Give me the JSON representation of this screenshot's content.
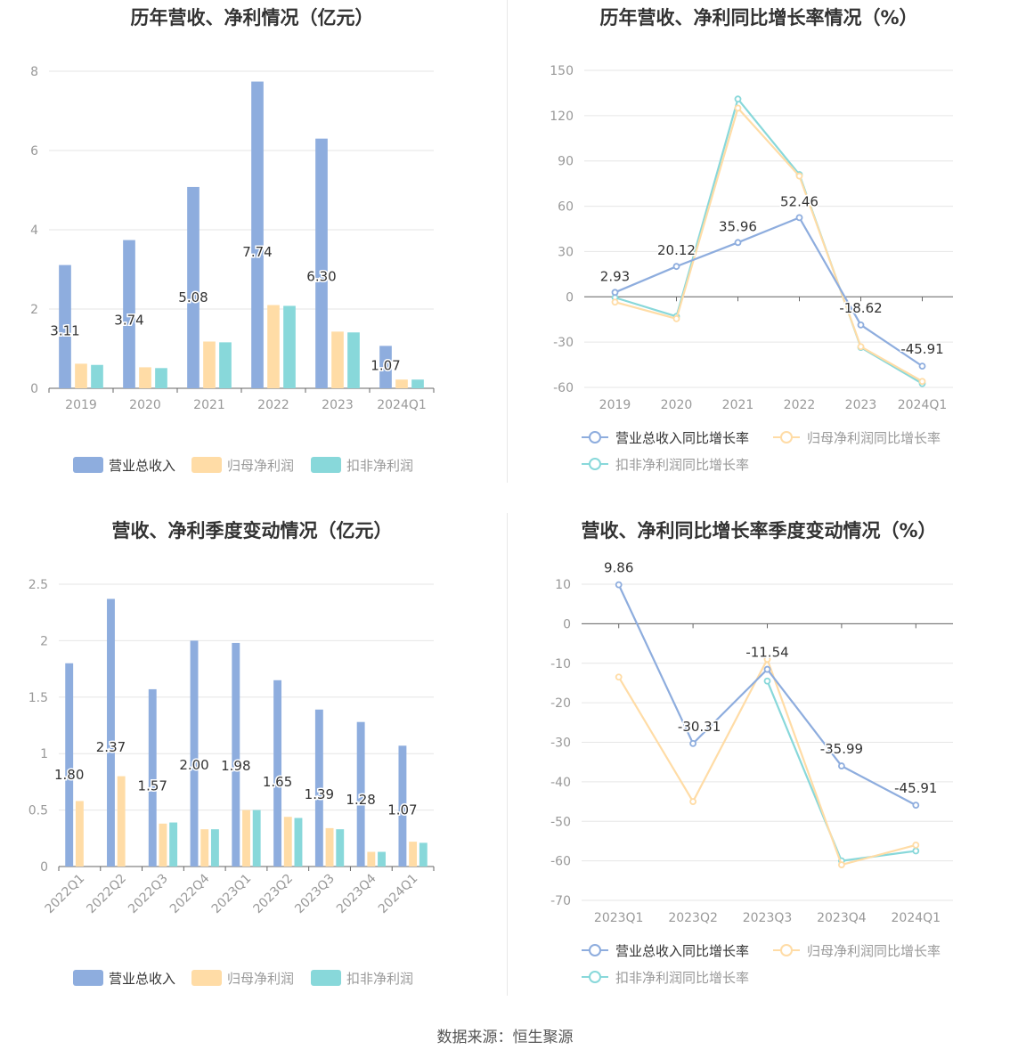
{
  "footer": {
    "source": "数据来源：恒生聚源"
  },
  "colors": {
    "revenue": "#8eadde",
    "net": "#ffdca6",
    "deducted": "#88d8da",
    "axis": "#666666",
    "grid": "#e6e6e6",
    "label": "#333333",
    "tick": "#999999"
  },
  "chart_data": [
    {
      "id": "annual-amount",
      "type": "bar",
      "title": "历年营收、净利情况（亿元）",
      "categories": [
        "2019",
        "2020",
        "2021",
        "2022",
        "2023",
        "2024Q1"
      ],
      "series": [
        {
          "name": "营业总收入",
          "values": [
            3.11,
            3.74,
            5.08,
            7.74,
            6.3,
            1.07
          ],
          "labels": [
            "3.11",
            "3.74",
            "5.08",
            "7.74",
            "6.30",
            "1.07"
          ]
        },
        {
          "name": "归母净利润",
          "values": [
            0.62,
            0.53,
            1.18,
            2.1,
            1.43,
            0.22
          ]
        },
        {
          "name": "扣非净利润",
          "values": [
            0.59,
            0.51,
            1.16,
            2.08,
            1.41,
            0.22
          ]
        }
      ],
      "ylim": [
        0,
        8
      ],
      "yticks": [
        "0",
        "2",
        "4",
        "6",
        "8"
      ],
      "grid": true,
      "legend": "bottom"
    },
    {
      "id": "annual-growth",
      "type": "line",
      "title": "历年营收、净利同比增长率情况（%）",
      "categories": [
        "2019",
        "2020",
        "2021",
        "2022",
        "2023",
        "2024Q1"
      ],
      "series": [
        {
          "name": "营业总收入同比增长率",
          "values": [
            2.93,
            20.12,
            35.96,
            52.46,
            -18.62,
            -45.91
          ],
          "labels": [
            "2.93",
            "20.12",
            "35.96",
            "52.46",
            "-18.62",
            "-45.91"
          ]
        },
        {
          "name": "归母净利润同比增长率",
          "values": [
            -3.5,
            -14.5,
            125.0,
            80.0,
            -33.0,
            -56.0
          ]
        },
        {
          "name": "扣非净利润同比增长率",
          "values": [
            -0.5,
            -13.0,
            131.0,
            81.0,
            -33.5,
            -57.5
          ]
        }
      ],
      "ylim": [
        -60,
        150
      ],
      "yticks": [
        "-60",
        "-30",
        "0",
        "30",
        "60",
        "90",
        "120",
        "150"
      ],
      "grid": true,
      "legend": "bottom"
    },
    {
      "id": "quarterly-amount",
      "type": "bar",
      "title": "营收、净利季度变动情况（亿元）",
      "categories": [
        "2022Q1",
        "2022Q2",
        "2022Q3",
        "2022Q4",
        "2023Q1",
        "2023Q2",
        "2023Q3",
        "2023Q4",
        "2024Q1"
      ],
      "series": [
        {
          "name": "营业总收入",
          "values": [
            1.8,
            2.37,
            1.57,
            2.0,
            1.98,
            1.65,
            1.39,
            1.28,
            1.07
          ],
          "labels": [
            "1.80",
            "2.37",
            "1.57",
            "2.00",
            "1.98",
            "1.65",
            "1.39",
            "1.28",
            "1.07"
          ]
        },
        {
          "name": "归母净利润",
          "values": [
            0.58,
            0.8,
            0.38,
            0.33,
            0.5,
            0.44,
            0.34,
            0.13,
            0.22
          ]
        },
        {
          "name": "扣非净利润",
          "values": [
            null,
            null,
            0.39,
            0.33,
            0.5,
            0.43,
            0.33,
            0.13,
            0.21
          ]
        }
      ],
      "ylim": [
        0,
        2.5
      ],
      "yticks": [
        "0",
        "0.5",
        "1",
        "1.5",
        "2",
        "2.5"
      ],
      "grid": true,
      "legend": "bottom"
    },
    {
      "id": "quarterly-growth",
      "type": "line",
      "title": "营收、净利同比增长率季度变动情况（%）",
      "categories": [
        "2023Q1",
        "2023Q2",
        "2023Q3",
        "2023Q4",
        "2024Q1"
      ],
      "series": [
        {
          "name": "营业总收入同比增长率",
          "values": [
            9.86,
            -30.31,
            -11.54,
            -35.99,
            -45.91
          ],
          "labels": [
            "9.86",
            "-30.31",
            "-11.54",
            "-35.99",
            "-45.91"
          ]
        },
        {
          "name": "归母净利润同比增长率",
          "values": [
            -13.5,
            -45.0,
            -9.0,
            -61.0,
            -56.0
          ]
        },
        {
          "name": "扣非净利润同比增长率",
          "values": [
            null,
            null,
            -14.5,
            -60.0,
            -57.5
          ]
        }
      ],
      "ylim": [
        -70,
        10
      ],
      "yticks": [
        "-70",
        "-60",
        "-50",
        "-40",
        "-30",
        "-20",
        "-10",
        "0",
        "10"
      ],
      "grid": true,
      "legend": "bottom"
    }
  ]
}
